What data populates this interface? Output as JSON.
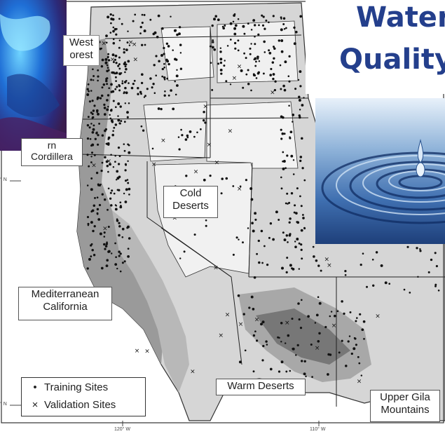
{
  "slide": {
    "title_line1": "Water",
    "title_line2": "Quality",
    "title_color": "#243f8c"
  },
  "map": {
    "regions": {
      "west_forest": "West\nForest",
      "cordillera": "Cordillera",
      "cold_deserts_1": "Cold",
      "cold_deserts_2": "Deserts",
      "mediterranean_1": "Mediterranean",
      "mediterranean_2": "California",
      "warm_deserts": "Warm Deserts",
      "upper_gila_1": "Upper Gila",
      "upper_gila_2": "Mountains"
    },
    "tick_labels": {
      "lon_120": "120° W",
      "lon_110": "110° W",
      "lat_upper": "° N",
      "lat_lower": "° N"
    },
    "legend": {
      "training_symbol": "•",
      "training_label": "Training Sites",
      "validation_symbol": "×",
      "validation_label": "Validation Sites"
    }
  },
  "colors": {
    "background": "#ffffff",
    "ecoregion_light": "#d6d6d6",
    "ecoregion_mid": "#b5b5b5",
    "ecoregion_dark": "#8a8a8a",
    "site_marker": "#111111"
  },
  "icons": {
    "left_photo": "blue-water-photo",
    "right_photo": "water-drop-ripple-photo"
  }
}
